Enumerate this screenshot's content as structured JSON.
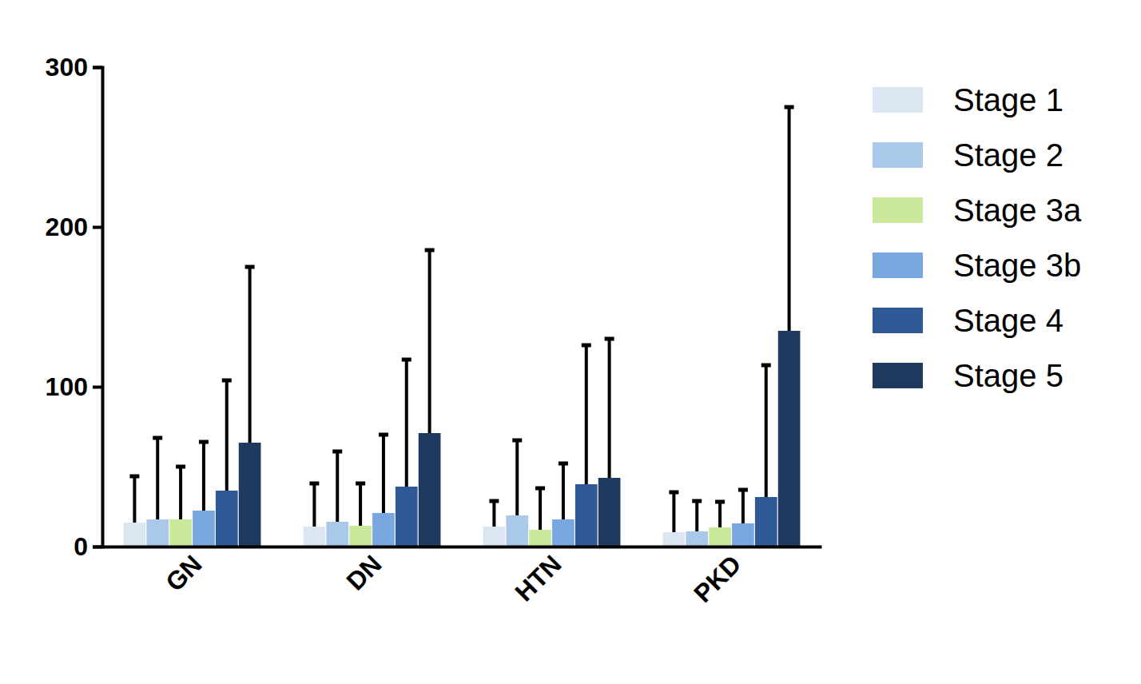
{
  "chart_data": {
    "type": "bar",
    "categories": [
      "GN",
      "DN",
      "HTN",
      "PKD"
    ],
    "series": [
      {
        "name": "Stage 1",
        "color": "#dce6f2",
        "values": [
          15,
          12.5,
          12.5,
          9
        ],
        "errors": [
          29,
          27,
          16,
          25
        ]
      },
      {
        "name": "Stage 2",
        "color": "#a9c8ea",
        "values": [
          17,
          15.5,
          19.5,
          9.5
        ],
        "errors": [
          51,
          44,
          47,
          19
        ]
      },
      {
        "name": "Stage 3a",
        "color": "#c9e89a",
        "values": [
          17,
          13,
          10.5,
          12
        ],
        "errors": [
          33,
          26.5,
          26,
          16
        ]
      },
      {
        "name": "Stage 3b",
        "color": "#79a8e0",
        "values": [
          22.5,
          21,
          17,
          14.5
        ],
        "errors": [
          43,
          49,
          35,
          21
        ]
      },
      {
        "name": "Stage 4",
        "color": "#2e5995",
        "values": [
          35,
          37.5,
          39,
          31
        ],
        "errors": [
          69,
          79.5,
          87,
          82.5
        ]
      },
      {
        "name": "Stage 5",
        "color": "#1f3a5f",
        "values": [
          65,
          71,
          43,
          135
        ],
        "errors": [
          110,
          114.5,
          87,
          140
        ]
      }
    ],
    "ylim": [
      0,
      300
    ],
    "yticks": [
      0,
      100,
      200,
      300
    ],
    "grid": false,
    "legend": "right"
  }
}
